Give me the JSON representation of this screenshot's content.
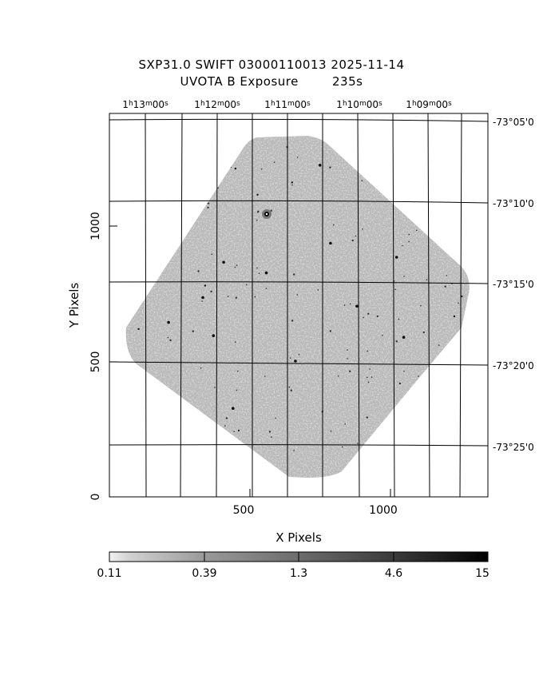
{
  "header": {
    "line1": "SXP31.0 SWIFT 03000110013 2025-11-14",
    "line2": "UVOTA B Exposure        235s"
  },
  "axes": {
    "xlabel": "X Pixels",
    "ylabel": "Y Pixels",
    "x_ticks": [
      "500",
      "1000"
    ],
    "y_ticks": [
      "0",
      "500",
      "1000"
    ],
    "ra_labels": [
      {
        "h": "1",
        "m": "13",
        "s": "00"
      },
      {
        "h": "1",
        "m": "12",
        "s": "00"
      },
      {
        "h": "1",
        "m": "11",
        "s": "00"
      },
      {
        "h": "1",
        "m": "10",
        "s": "00"
      },
      {
        "h": "1",
        "m": "09",
        "s": "00"
      }
    ],
    "dec_labels": [
      "-73°05'0",
      "-73°10'0",
      "-73°15'0",
      "-73°20'0",
      "-73°25'0"
    ]
  },
  "colorbar": {
    "ticks": [
      "0.11",
      "0.39",
      "1.3",
      "4.6",
      "15"
    ]
  },
  "colors": {
    "background": "#ffffff",
    "frame": "#000000",
    "image_fill": "#b8b8b8"
  }
}
